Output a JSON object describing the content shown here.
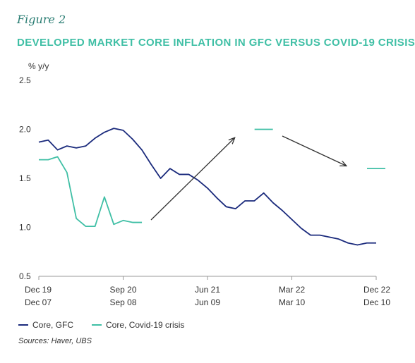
{
  "figure_label": "Figure 2",
  "title": "DEVELOPED MARKET CORE INFLATION IN GFC VERSUS COVID-19 CRISIS",
  "source": "Sources: Haver, UBS",
  "colors": {
    "gfc": "#1a2a7c",
    "covid": "#3fbfa5",
    "arrow": "#333333",
    "axis": "#999999"
  },
  "chart_data": {
    "type": "line",
    "ylabel": "% y/y",
    "ylim": [
      0.5,
      2.5
    ],
    "yticks": [
      "2.5",
      "2.0",
      "1.5",
      "1.0",
      "0.5"
    ],
    "ytick_values": [
      2.5,
      2.0,
      1.5,
      1.0,
      0.5
    ],
    "xticks": [
      {
        "top": "Dec 19",
        "bottom": "Dec 07",
        "index": 0
      },
      {
        "top": "Sep 20",
        "bottom": "Sep 08",
        "index": 9
      },
      {
        "top": "Jun 21",
        "bottom": "Jun 09",
        "index": 18
      },
      {
        "top": "Mar 22",
        "bottom": "Mar 10",
        "index": 27
      },
      {
        "top": "Dec 22",
        "bottom": "Dec 10",
        "index": 36
      }
    ],
    "series": [
      {
        "name": "Core, GFC",
        "values": [
          1.87,
          1.89,
          1.79,
          1.83,
          1.81,
          1.83,
          1.91,
          1.97,
          2.01,
          1.99,
          1.9,
          1.79,
          1.64,
          1.5,
          1.6,
          1.54,
          1.54,
          1.48,
          1.4,
          1.3,
          1.21,
          1.19,
          1.27,
          1.27,
          1.35,
          1.25,
          1.17,
          1.08,
          0.99,
          0.92,
          0.92,
          0.9,
          0.88,
          0.84,
          0.82,
          0.84,
          0.84
        ]
      },
      {
        "name": "Core, Covid-19 crisis",
        "segments": [
          {
            "start": 0,
            "values": [
              1.69,
              1.69,
              1.72,
              1.56,
              1.09,
              1.01,
              1.01,
              1.31,
              1.03,
              1.07,
              1.05,
              1.05
            ]
          },
          {
            "start": 24,
            "values": [
              2.0,
              2.0
            ]
          },
          {
            "start": 36,
            "values": [
              1.6,
              1.6
            ]
          }
        ]
      }
    ]
  }
}
